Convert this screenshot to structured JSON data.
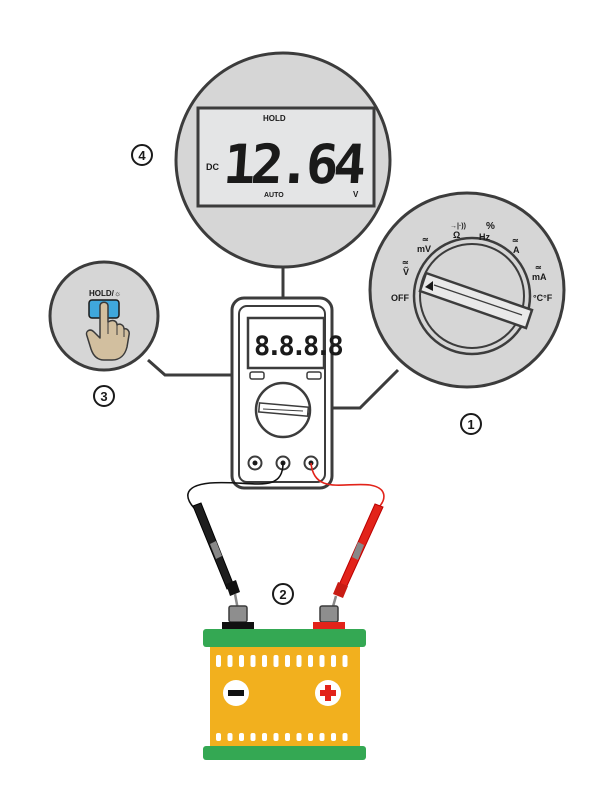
{
  "lcd_zoom": {
    "hold": "HOLD",
    "dc": "DC",
    "reading": "12.64",
    "unit": "V",
    "auto": "AUTO"
  },
  "meter": {
    "display": "8.8.8.8"
  },
  "button_zoom": {
    "label": "HOLD/☼"
  },
  "dial": {
    "off": "OFF",
    "v_ac": "Ṽ",
    "mv": "mV",
    "ohm": "Ω",
    "hz_pct": "%",
    "hz": "Hz",
    "amp": "A",
    "ma": "mA",
    "temp": "°C°F",
    "tilde": "≃"
  },
  "callouts": [
    "1",
    "2",
    "3",
    "4"
  ],
  "battery": {
    "negative": "−",
    "positive": "+"
  },
  "colors": {
    "lcd_bg": "#e4e5e6",
    "button_blue": "#3fa7dc",
    "hand": "#d2bf9f",
    "battery_body": "#f2b01e",
    "battery_band": "#34a853",
    "lead_red": "#e2231a",
    "lead_black": "#111111"
  }
}
